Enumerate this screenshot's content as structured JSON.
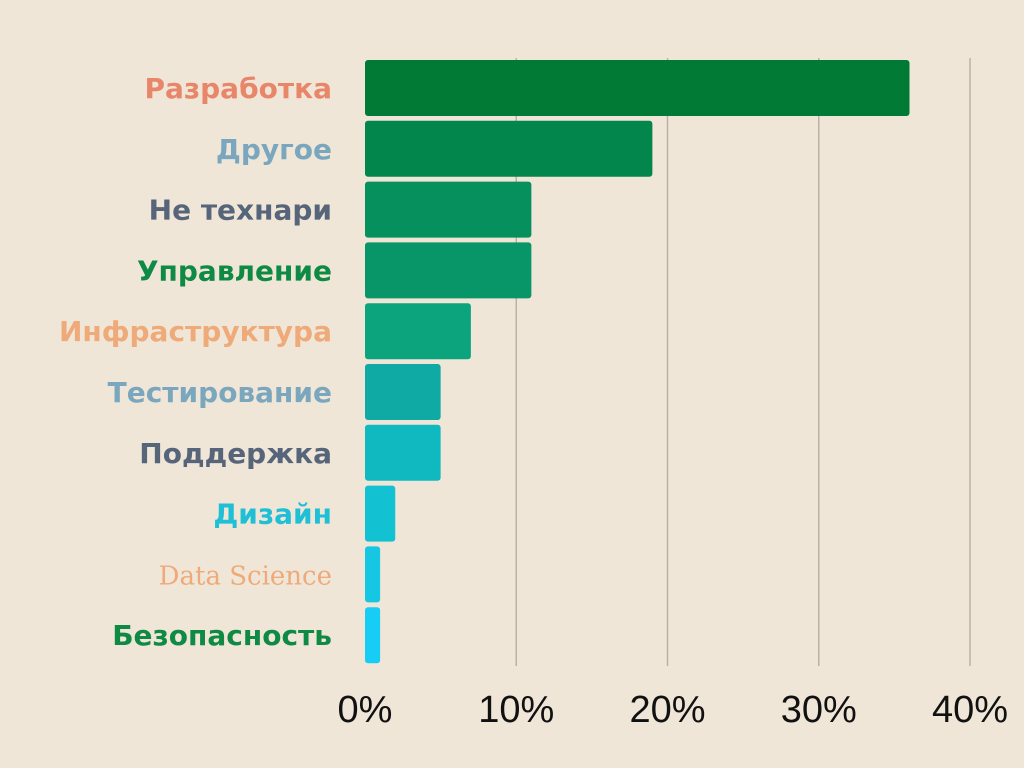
{
  "chart_data": {
    "type": "bar",
    "orientation": "horizontal",
    "title": "",
    "xlabel": "",
    "ylabel": "",
    "xlim": [
      0,
      40
    ],
    "grid": true,
    "categories": [
      "Разработка",
      "Другое",
      "Не технари",
      "Управление",
      "Инфраструктура",
      "Тестирование",
      "Поддержка",
      "Дизайн",
      "Data Science",
      "Безопасность"
    ],
    "values": [
      36,
      19,
      11,
      11,
      7,
      5,
      5,
      2,
      1,
      1
    ],
    "label_colors": [
      "#e8866a",
      "#7aa7bd",
      "#56657a",
      "#0f8a44",
      "#eeaa78",
      "#7aa7bd",
      "#56657a",
      "#1fbfd6",
      "#eeaa78",
      "#0f8a44"
    ],
    "bar_colors": [
      "#007a35",
      "#02864c",
      "#06905e",
      "#089668",
      "#0ba47c",
      "#0eaaa3",
      "#10b8c0",
      "#13c2d2",
      "#15c7e2",
      "#18cdf5"
    ],
    "x_ticks": [
      "0%",
      "10%",
      "20%",
      "30%",
      "40%"
    ],
    "x_tick_values": [
      0,
      10,
      20,
      30,
      40
    ]
  }
}
